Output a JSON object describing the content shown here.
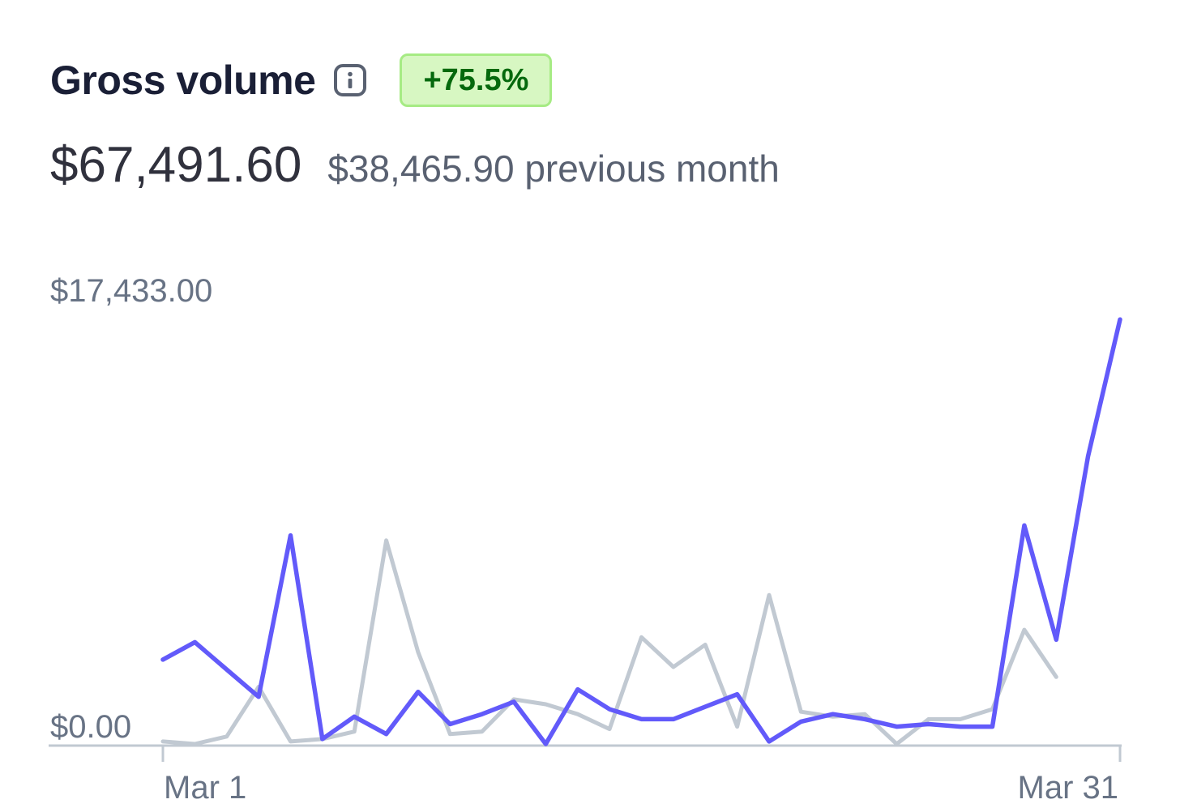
{
  "header": {
    "title": "Gross volume",
    "info_icon": "info-icon",
    "badge": "+75.5%",
    "badge_colors": {
      "background": "#d7f7c2",
      "border": "#a6eb84",
      "text": "#05690d"
    }
  },
  "summary": {
    "amount": "$67,491.60",
    "previous": "$38,465.90 previous month"
  },
  "chart_data": {
    "type": "line",
    "title": "",
    "xlabel": "",
    "ylabel": "",
    "x_tick_labels": [
      "Mar 1",
      "Mar 31"
    ],
    "y_tick_labels": [
      "$17,433.00",
      "$0.00"
    ],
    "ylim": [
      0,
      17433
    ],
    "grid": false,
    "legend": "none",
    "x": [
      1,
      2,
      3,
      4,
      5,
      6,
      7,
      8,
      9,
      10,
      11,
      12,
      13,
      14,
      15,
      16,
      17,
      18,
      19,
      20,
      21,
      22,
      23,
      24,
      25,
      26,
      27,
      28,
      29,
      30,
      31
    ],
    "series": [
      {
        "color": "#625afa",
        "values": [
          3400,
          4100,
          3000,
          1900,
          8400,
          200,
          1100,
          400,
          2100,
          800,
          1200,
          1700,
          0,
          2200,
          1400,
          1000,
          1000,
          1500,
          2000,
          100,
          900,
          1200,
          1000,
          700,
          800,
          700,
          700,
          8800,
          4200,
          11600,
          17100
        ]
      },
      {
        "color": "#c1c9d2",
        "values": [
          100,
          0,
          300,
          2300,
          100,
          200,
          500,
          8200,
          3700,
          400,
          500,
          1800,
          1600,
          1200,
          600,
          4300,
          3100,
          4000,
          700,
          6000,
          1300,
          1100,
          1200,
          0,
          1000,
          1000,
          1400,
          4600,
          2700,
          null,
          null
        ]
      }
    ]
  }
}
